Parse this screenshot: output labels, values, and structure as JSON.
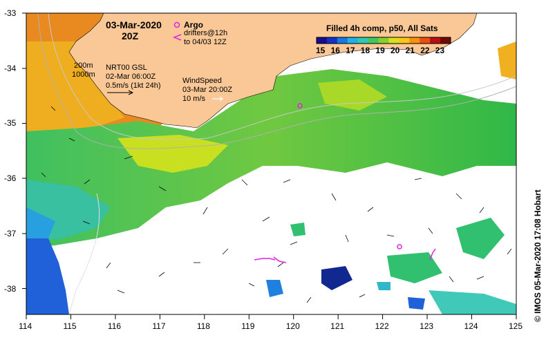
{
  "title": {
    "date": "03-Mar-2020",
    "time": "20Z"
  },
  "colorbar": {
    "title": "Filled 4h comp, p50, All Sats",
    "ticks": [
      "15",
      "16",
      "17",
      "18",
      "19",
      "20",
      "21",
      "22",
      "23"
    ],
    "colors": [
      "#1a0b8c",
      "#1030c8",
      "#1878e0",
      "#20b0e8",
      "#30c8b0",
      "#40c860",
      "#88d030",
      "#d8e020",
      "#f8c818",
      "#f89010",
      "#e85010",
      "#b81010",
      "#700808"
    ]
  },
  "legend": {
    "argo_label": "Argo",
    "drifters_line1": "drifters@12h",
    "drifters_line2": "to 04/03 12Z",
    "argo_color": "#e020e0"
  },
  "currents": {
    "line1": "NRT00 GSL",
    "line2": "02-Mar 06:00Z",
    "line3": "0.5m/s (1kt 24h)"
  },
  "wind": {
    "line1": "WindSpeed",
    "line2": "03-Mar 20:00Z",
    "line3": "10 m/s"
  },
  "isobaths": {
    "a": "200m",
    "b": "1000m"
  },
  "axes": {
    "x_ticks": [
      "114",
      "115",
      "116",
      "117",
      "118",
      "119",
      "120",
      "121",
      "122",
      "123",
      "124",
      "125"
    ],
    "y_ticks": [
      "-33",
      "-34",
      "-35",
      "-36",
      "-37",
      "-38"
    ]
  },
  "copyright": "© IMOS 05-Mar-2020 17:08 Hobart",
  "land_color": "#f9c896",
  "argo_floats": [
    {
      "lon": 120.1,
      "lat": -34.7
    },
    {
      "lon": 122.35,
      "lat": -37.25
    }
  ],
  "drifters": [
    {
      "lon": 119.6,
      "lat": -37.5
    },
    {
      "lon": 119.3,
      "lat": -37.5
    },
    {
      "lon": 123.05,
      "lat": -37.35
    }
  ]
}
